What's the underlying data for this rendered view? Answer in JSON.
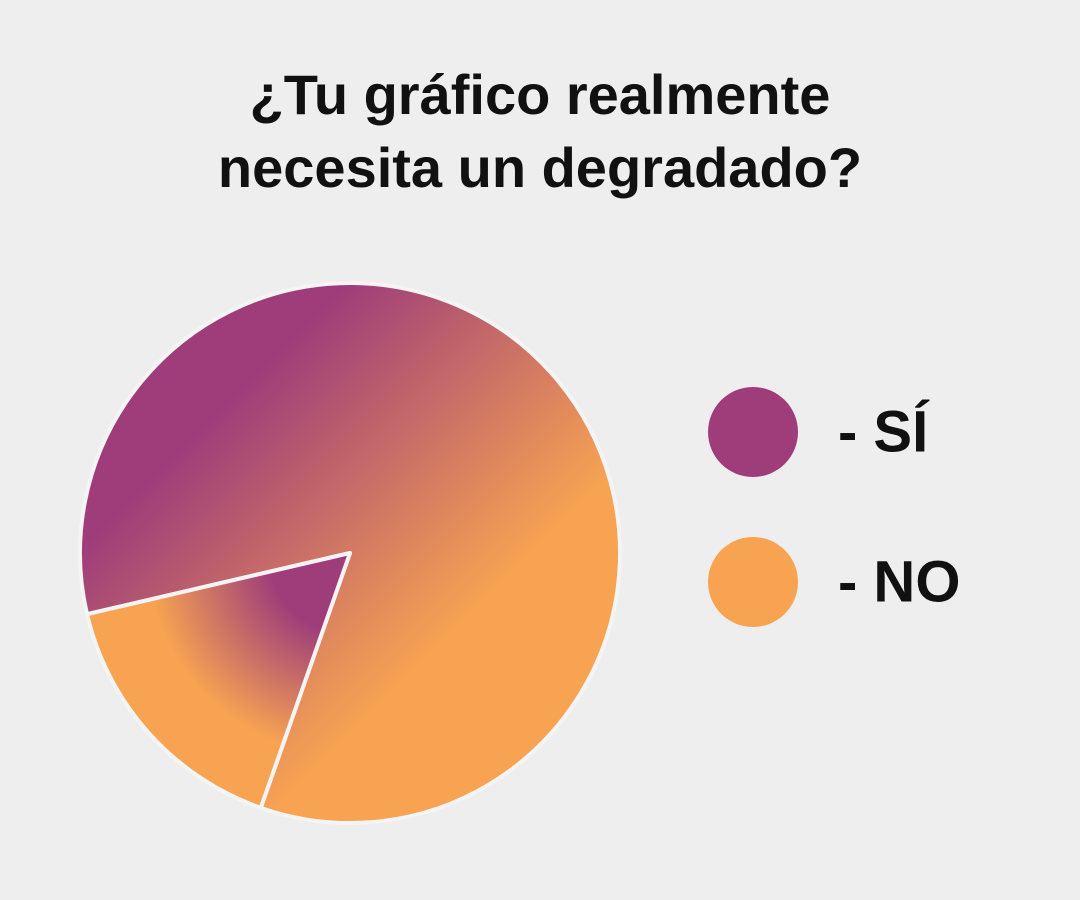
{
  "chart_data": {
    "type": "pie",
    "title": "¿Tu gráfico realmente necesita un degradado?",
    "categories": [
      "- SÍ",
      "- NO"
    ],
    "values": [
      84,
      16
    ],
    "colors": [
      "#9e3d7a",
      "#f7a352"
    ]
  }
}
